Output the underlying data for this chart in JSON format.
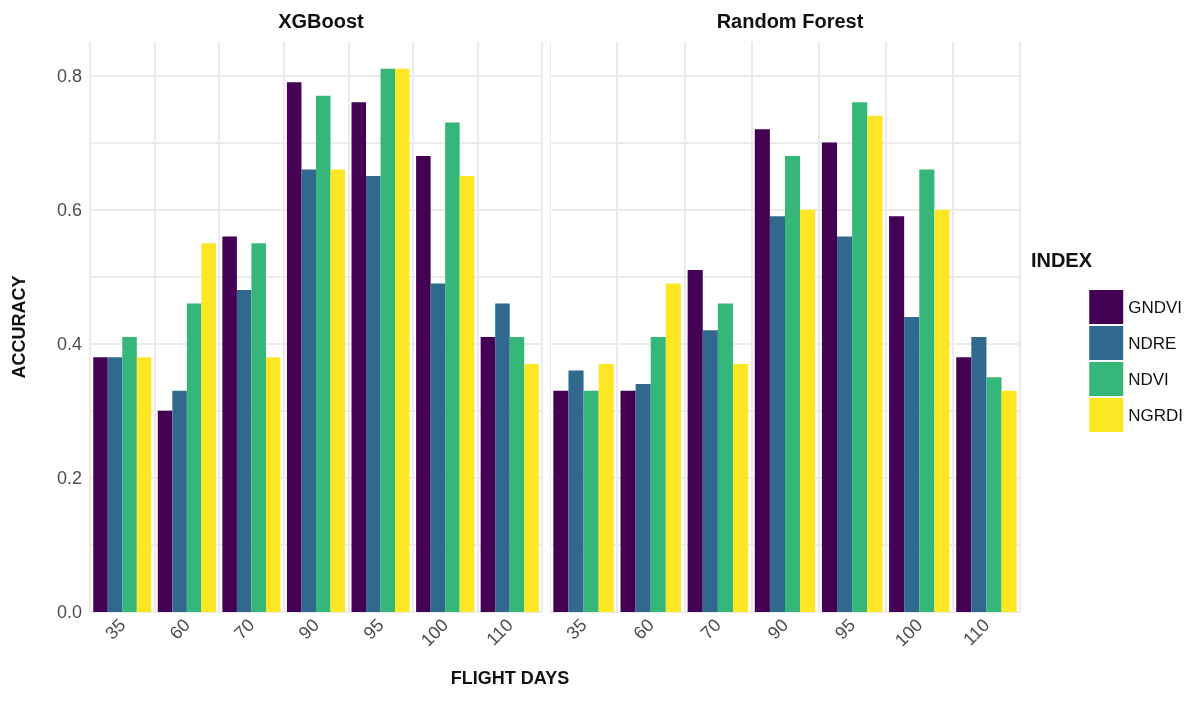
{
  "chart_data": [
    {
      "type": "bar",
      "title": "XGBoost",
      "xlabel": "FLIGHT DAYS",
      "ylabel": "ACCURACY",
      "categories": [
        "35",
        "60",
        "70",
        "90",
        "95",
        "100",
        "110"
      ],
      "series": [
        {
          "color": "#440154",
          "values": [
            0.38,
            0.3,
            0.56,
            0.79,
            0.76,
            0.68,
            0.41
          ]
        },
        {
          "color": "#31688e",
          "values": [
            0.38,
            0.33,
            0.48,
            0.66,
            0.65,
            0.49,
            0.46
          ]
        },
        {
          "color": "#35b779",
          "values": [
            0.41,
            0.46,
            0.55,
            0.77,
            0.81,
            0.73,
            0.41
          ]
        },
        {
          "color": "#fde725",
          "values": [
            0.38,
            0.55,
            0.38,
            0.66,
            0.81,
            0.65,
            0.37
          ]
        }
      ],
      "ylim": [
        0,
        0.85
      ],
      "yticks": [
        {
          "value": 0,
          "label": "0.0"
        },
        {
          "value": 0.1,
          "label": null
        },
        0.2,
        {
          "value": 0.3,
          "label": null
        },
        0.4,
        {
          "value": 0.5,
          "label": null
        },
        0.6,
        {
          "value": 0.7,
          "label": null
        },
        0.8
      ],
      "grid": true,
      "legend": false
    },
    {
      "type": "bar",
      "title": "Random Forest",
      "legend_title": "INDEX",
      "categories": [
        "35",
        "60",
        "70",
        "90",
        "95",
        "100",
        "110"
      ],
      "series": [
        {
          "name": "GNDVI",
          "color": "#440154",
          "values": [
            0.33,
            0.33,
            0.51,
            0.72,
            0.7,
            0.59,
            0.38
          ]
        },
        {
          "name": "NDRE",
          "color": "#31688e",
          "values": [
            0.36,
            0.34,
            0.42,
            0.59,
            0.56,
            0.44,
            0.41
          ]
        },
        {
          "name": "NDVI",
          "color": "#35b779",
          "values": [
            0.33,
            0.41,
            0.46,
            0.68,
            0.76,
            0.66,
            0.35
          ]
        },
        {
          "name": "NGRDI",
          "color": "#fde725",
          "values": [
            0.37,
            0.49,
            0.37,
            0.6,
            0.74,
            0.6,
            0.33
          ]
        }
      ],
      "ylim": [
        0,
        0.85
      ],
      "yticks": [
        0,
        0.1,
        0.2,
        0.3,
        0.4,
        0.5,
        0.6,
        0.7,
        0.8
      ],
      "grid": true,
      "legend": "right",
      "tick_labels": "x"
    }
  ]
}
